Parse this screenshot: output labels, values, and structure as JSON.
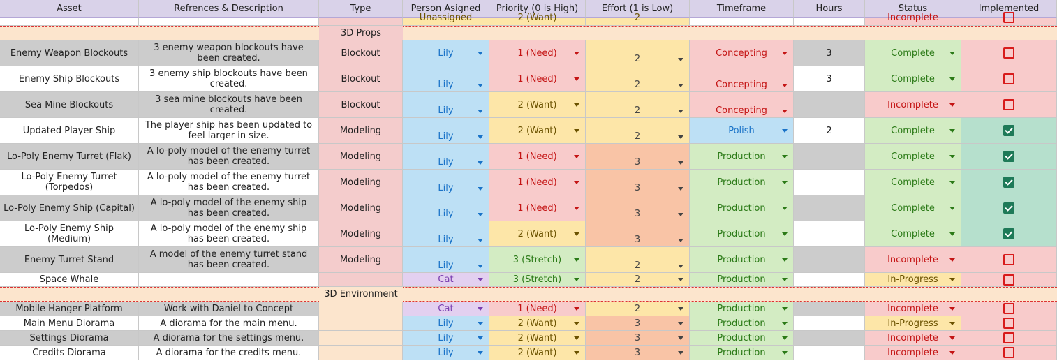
{
  "columns": [
    "Asset",
    "Refrences & Description",
    "Type",
    "Person Asigned",
    "Priority (0 is High)",
    "Effort (1 is Low)",
    "Timeframe",
    "Hours",
    "Status",
    "Implemented"
  ],
  "colors": {
    "gray_row": "#cccccc",
    "white_row": "#ffffff",
    "section_props": "#f4cccc",
    "section_env": "#fce5cd",
    "person_lily_bg": "#bde0f5",
    "person_lily_fg": "#1a73c8",
    "person_cat_bg": "#e3d0f0",
    "person_cat_fg": "#7a3fb0",
    "need_bg": "#f8cbcb",
    "need_fg": "#c41414",
    "want_bg": "#fde6a8",
    "want_fg": "#6b5200",
    "stretch_bg": "#d3ecc3",
    "stretch_fg": "#2b7a17",
    "effort2_bg": "#fde6a8",
    "effort3_bg": "#f9c4a6",
    "concept_bg": "#f8cbcb",
    "concept_fg": "#c41414",
    "polish_bg": "#bde0f5",
    "polish_fg": "#1a73c8",
    "prod_bg": "#d3ecc3",
    "prod_fg": "#2b7a17",
    "complete_bg": "#d3ecc3",
    "complete_fg": "#2b7a17",
    "incomplete_bg": "#f8cbcb",
    "incomplete_fg": "#c41414",
    "inprog_bg": "#fde6a8",
    "inprog_fg": "#6b5200",
    "impl_on_bg": "#b6e0cd",
    "impl_off_bg": "#f8cbcb"
  },
  "partial_row": {
    "person": "Unassigned",
    "priority": "2 (Want)",
    "effort": "2",
    "status": "Incomplete"
  },
  "sections": {
    "props": "3D Props",
    "environment": "3D Environment"
  },
  "rows": [
    {
      "asset": "Enemy Weapon Blockouts",
      "desc": "3 enemy weapon blockouts have been created.",
      "type": "Blockout",
      "person": "Lily",
      "priority": "1 (Need)",
      "effort": "2",
      "timeframe": "Concepting",
      "hours": "3",
      "status": "Complete",
      "implemented": false
    },
    {
      "asset": "Enemy Ship Blockouts",
      "desc": "3 enemy ship blockouts have been created.",
      "type": "Blockout",
      "person": "Lily",
      "priority": "1 (Need)",
      "effort": "2",
      "timeframe": "Concepting",
      "hours": "3",
      "status": "Complete",
      "implemented": false
    },
    {
      "asset": "Sea Mine Blockouts",
      "desc": "3 sea mine blockouts have been created.",
      "type": "Blockout",
      "person": "Lily",
      "priority": "2 (Want)",
      "effort": "2",
      "timeframe": "Concepting",
      "hours": "",
      "status": "Incomplete",
      "implemented": false
    },
    {
      "asset": "Updated Player Ship",
      "desc": "The player ship has been updated to feel larger in size.",
      "type": "Modeling",
      "person": "Lily",
      "priority": "2 (Want)",
      "effort": "2",
      "timeframe": "Polish",
      "hours": "2",
      "status": "Complete",
      "implemented": true
    },
    {
      "asset": "Lo-Poly Enemy Turret (Flak)",
      "desc": "A lo-poly model of the enemy turret has been created.",
      "type": "Modeling",
      "person": "Lily",
      "priority": "1 (Need)",
      "effort": "3",
      "timeframe": "Production",
      "hours": "",
      "status": "Complete",
      "implemented": true
    },
    {
      "asset": "Lo-Poly Enemy Turret (Torpedos)",
      "desc": "A lo-poly model of the enemy turret has been created.",
      "type": "Modeling",
      "person": "Lily",
      "priority": "1 (Need)",
      "effort": "3",
      "timeframe": "Production",
      "hours": "",
      "status": "Complete",
      "implemented": true
    },
    {
      "asset": "Lo-Poly Enemy Ship (Capital)",
      "desc": "A lo-poly model of the enemy ship has been created.",
      "type": "Modeling",
      "person": "Lily",
      "priority": "1 (Need)",
      "effort": "3",
      "timeframe": "Production",
      "hours": "",
      "status": "Complete",
      "implemented": true
    },
    {
      "asset": "Lo-Poly Enemy Ship (Medium)",
      "desc": "A lo-poly model of the enemy ship has been created.",
      "type": "Modeling",
      "person": "Lily",
      "priority": "2 (Want)",
      "effort": "3",
      "timeframe": "Production",
      "hours": "",
      "status": "Complete",
      "implemented": true
    },
    {
      "asset": "Enemy Turret Stand",
      "desc": "A model of the enemy turret stand has been created.",
      "type": "Modeling",
      "person": "Lily",
      "priority": "3 (Stretch)",
      "effort": "2",
      "timeframe": "Production",
      "hours": "",
      "status": "Incomplete",
      "implemented": false
    },
    {
      "asset": "Space Whale",
      "desc": "",
      "type": "",
      "person": "Cat",
      "priority": "3 (Stretch)",
      "effort": "2",
      "timeframe": "Production",
      "hours": "",
      "status": "In-Progress",
      "implemented": false
    },
    {
      "asset": "Mobile Hanger Platform",
      "desc": "Work with Daniel to Concept",
      "type": "",
      "person": "Cat",
      "priority": "1 (Need)",
      "effort": "2",
      "timeframe": "Production",
      "hours": "",
      "status": "Incomplete",
      "implemented": false
    },
    {
      "asset": "Main Menu Diorama",
      "desc": "A diorama for the main menu.",
      "type": "",
      "person": "Lily",
      "priority": "2 (Want)",
      "effort": "3",
      "timeframe": "Production",
      "hours": "",
      "status": "In-Progress",
      "implemented": false
    },
    {
      "asset": "Settings Diorama",
      "desc": "A diorama for the settings menu.",
      "type": "",
      "person": "Lily",
      "priority": "2 (Want)",
      "effort": "3",
      "timeframe": "Production",
      "hours": "",
      "status": "Incomplete",
      "implemented": false
    },
    {
      "asset": "Credits Diorama",
      "desc": "A diorama for the credits menu.",
      "type": "",
      "person": "Lily",
      "priority": "2 (Want)",
      "effort": "3",
      "timeframe": "Production",
      "hours": "",
      "status": "Incomplete",
      "implemented": false
    }
  ]
}
